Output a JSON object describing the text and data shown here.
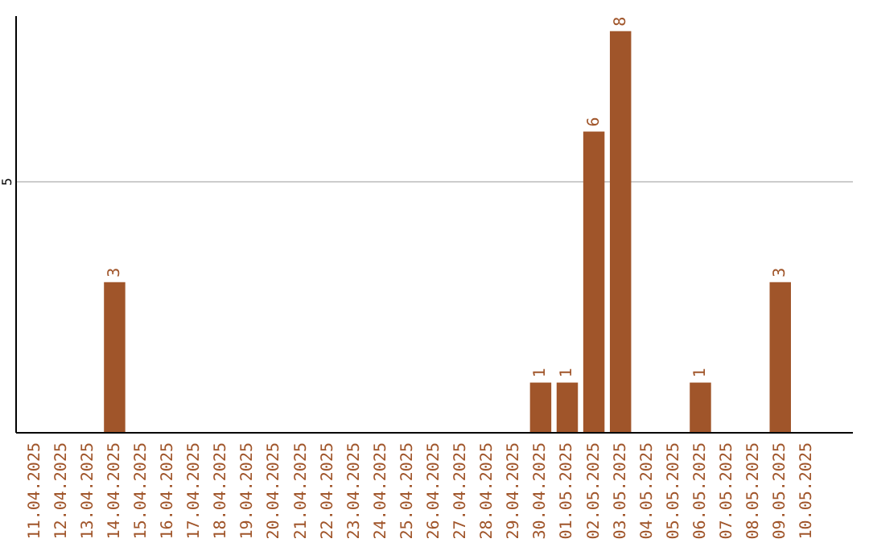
{
  "chart_data": {
    "type": "bar",
    "categories": [
      "11.04.2025",
      "12.04.2025",
      "13.04.2025",
      "14.04.2025",
      "15.04.2025",
      "16.04.2025",
      "17.04.2025",
      "18.04.2025",
      "19.04.2025",
      "20.04.2025",
      "21.04.2025",
      "22.04.2025",
      "23.04.2025",
      "24.04.2025",
      "25.04.2025",
      "26.04.2025",
      "27.04.2025",
      "28.04.2025",
      "29.04.2025",
      "30.04.2025",
      "01.05.2025",
      "02.05.2025",
      "03.05.2025",
      "04.05.2025",
      "05.05.2025",
      "06.05.2025",
      "07.05.2025",
      "08.05.2025",
      "09.05.2025",
      "10.05.2025"
    ],
    "values": [
      null,
      null,
      null,
      3,
      null,
      null,
      null,
      null,
      null,
      null,
      null,
      null,
      null,
      null,
      null,
      null,
      null,
      null,
      null,
      1,
      1,
      6,
      8,
      null,
      null,
      1,
      null,
      null,
      3,
      null
    ],
    "color": "#a0552a",
    "ylim": [
      0,
      8.3
    ],
    "yticks": [
      5
    ],
    "grid": "y",
    "data_labels": true
  }
}
